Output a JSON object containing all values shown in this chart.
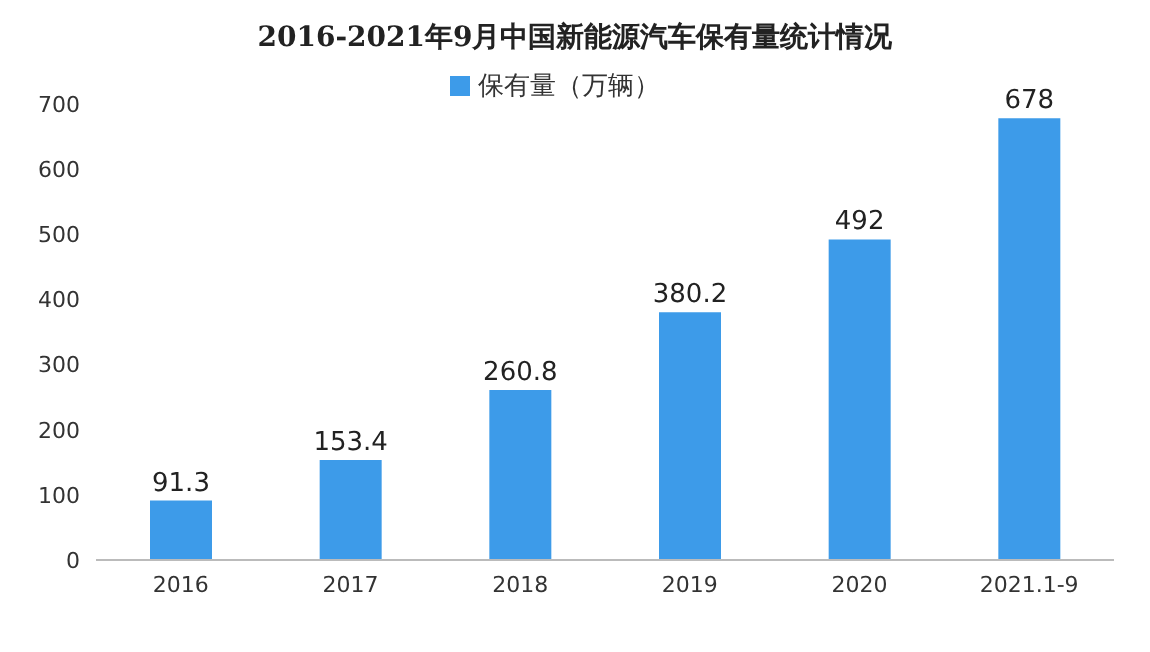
{
  "chart_data": {
    "type": "bar",
    "title": "2016-2021年9月中国新能源汽车保有量统计情况",
    "categories": [
      "2016",
      "2017",
      "2018",
      "2019",
      "2020",
      "2021.1-9"
    ],
    "series": [
      {
        "name": "保有量（万辆）",
        "color": "#3d9be9",
        "values": [
          91.3,
          153.4,
          260.8,
          380.2,
          492,
          678
        ]
      }
    ],
    "ylim": [
      0,
      700
    ],
    "yticks": [
      0,
      100,
      200,
      300,
      400,
      500,
      600,
      700
    ],
    "grid": false,
    "legend": "top",
    "data_labels": true
  }
}
